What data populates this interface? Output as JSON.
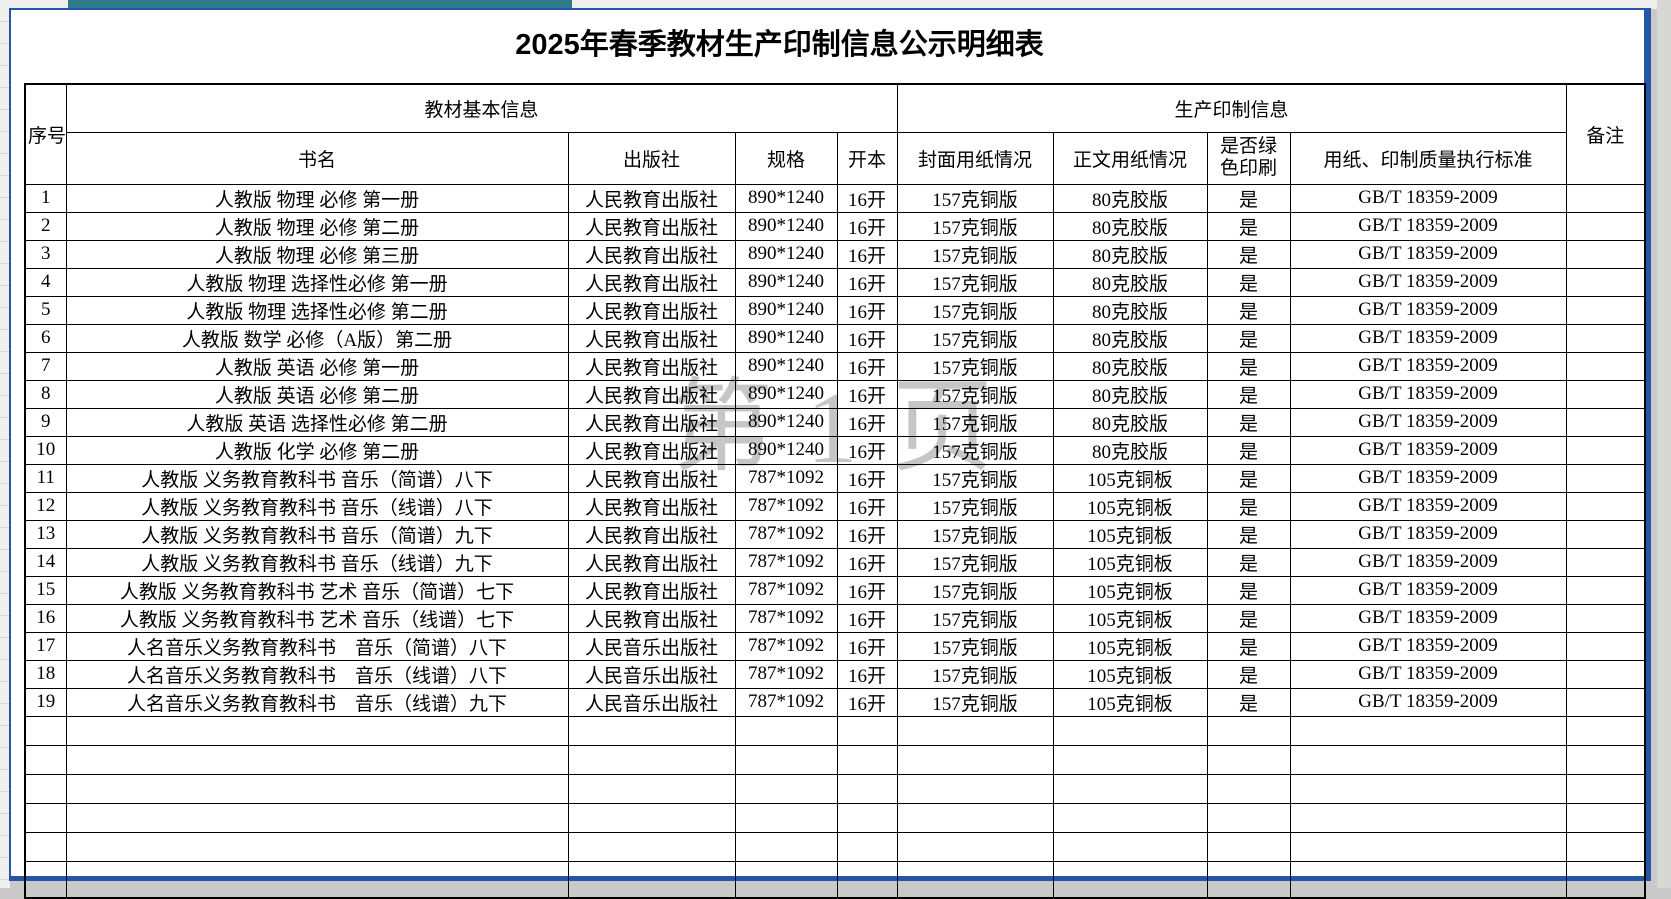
{
  "window": {
    "teal_bar_color": "#2e7a8b",
    "page_border_color": "#2456a5",
    "watermark_color": "#8f8f8f"
  },
  "title": "2025年春季教材生产印制信息公示明细表",
  "watermark": "第 1 页",
  "table": {
    "header_groups": {
      "serial": "序号",
      "basic_info": "教材基本信息",
      "production_info": "生产印制信息",
      "remarks": "备注"
    },
    "columns": {
      "book": "书名",
      "publisher": "出版社",
      "spec": "规格",
      "format": "开本",
      "cover_paper": "封面用纸情况",
      "body_paper": "正文用纸情况",
      "green_print": "是否绿色印刷",
      "standard": "用纸、印制质量执行标准"
    },
    "rows": [
      [
        "1",
        "人教版 物理 必修 第一册",
        "人民教育出版社",
        "890*1240",
        "16开",
        "157克铜版",
        "80克胶版",
        "是",
        "GB/T 18359-2009",
        ""
      ],
      [
        "2",
        "人教版 物理 必修 第二册",
        "人民教育出版社",
        "890*1240",
        "16开",
        "157克铜版",
        "80克胶版",
        "是",
        "GB/T 18359-2009",
        ""
      ],
      [
        "3",
        "人教版 物理 必修 第三册",
        "人民教育出版社",
        "890*1240",
        "16开",
        "157克铜版",
        "80克胶版",
        "是",
        "GB/T 18359-2009",
        ""
      ],
      [
        "4",
        "人教版 物理 选择性必修 第一册",
        "人民教育出版社",
        "890*1240",
        "16开",
        "157克铜版",
        "80克胶版",
        "是",
        "GB/T 18359-2009",
        ""
      ],
      [
        "5",
        "人教版 物理 选择性必修 第二册",
        "人民教育出版社",
        "890*1240",
        "16开",
        "157克铜版",
        "80克胶版",
        "是",
        "GB/T 18359-2009",
        ""
      ],
      [
        "6",
        "人教版 数学 必修（A版）第二册",
        "人民教育出版社",
        "890*1240",
        "16开",
        "157克铜版",
        "80克胶版",
        "是",
        "GB/T 18359-2009",
        ""
      ],
      [
        "7",
        "人教版 英语 必修 第一册",
        "人民教育出版社",
        "890*1240",
        "16开",
        "157克铜版",
        "80克胶版",
        "是",
        "GB/T 18359-2009",
        ""
      ],
      [
        "8",
        "人教版 英语 必修 第二册",
        "人民教育出版社",
        "890*1240",
        "16开",
        "157克铜版",
        "80克胶版",
        "是",
        "GB/T 18359-2009",
        ""
      ],
      [
        "9",
        "人教版 英语 选择性必修 第二册",
        "人民教育出版社",
        "890*1240",
        "16开",
        "157克铜版",
        "80克胶版",
        "是",
        "GB/T 18359-2009",
        ""
      ],
      [
        "10",
        "人教版 化学 必修 第二册",
        "人民教育出版社",
        "890*1240",
        "16开",
        "157克铜版",
        "80克胶版",
        "是",
        "GB/T 18359-2009",
        ""
      ],
      [
        "11",
        "人教版 义务教育教科书 音乐（简谱）八下",
        "人民教育出版社",
        "787*1092",
        "16开",
        "157克铜版",
        "105克铜板",
        "是",
        "GB/T 18359-2009",
        ""
      ],
      [
        "12",
        "人教版 义务教育教科书 音乐（线谱）八下",
        "人民教育出版社",
        "787*1092",
        "16开",
        "157克铜版",
        "105克铜板",
        "是",
        "GB/T 18359-2009",
        ""
      ],
      [
        "13",
        "人教版 义务教育教科书 音乐（简谱）九下",
        "人民教育出版社",
        "787*1092",
        "16开",
        "157克铜版",
        "105克铜板",
        "是",
        "GB/T 18359-2009",
        ""
      ],
      [
        "14",
        "人教版 义务教育教科书 音乐（线谱）九下",
        "人民教育出版社",
        "787*1092",
        "16开",
        "157克铜版",
        "105克铜板",
        "是",
        "GB/T 18359-2009",
        ""
      ],
      [
        "15",
        "人教版 义务教育教科书 艺术 音乐（简谱）七下",
        "人民教育出版社",
        "787*1092",
        "16开",
        "157克铜版",
        "105克铜板",
        "是",
        "GB/T 18359-2009",
        ""
      ],
      [
        "16",
        "人教版 义务教育教科书 艺术 音乐（线谱）七下",
        "人民教育出版社",
        "787*1092",
        "16开",
        "157克铜版",
        "105克铜板",
        "是",
        "GB/T 18359-2009",
        ""
      ],
      [
        "17",
        "人名音乐义务教育教科书　音乐（简谱）八下",
        "人民音乐出版社",
        "787*1092",
        "16开",
        "157克铜版",
        "105克铜板",
        "是",
        "GB/T 18359-2009",
        ""
      ],
      [
        "18",
        "人名音乐义务教育教科书　音乐（线谱）八下",
        "人民音乐出版社",
        "787*1092",
        "16开",
        "157克铜版",
        "105克铜板",
        "是",
        "GB/T 18359-2009",
        ""
      ],
      [
        "19",
        "人名音乐义务教育教科书　音乐（线谱）九下",
        "人民音乐出版社",
        "787*1092",
        "16开",
        "157克铜版",
        "105克铜板",
        "是",
        "GB/T 18359-2009",
        ""
      ]
    ],
    "empty_row_count": 6
  }
}
